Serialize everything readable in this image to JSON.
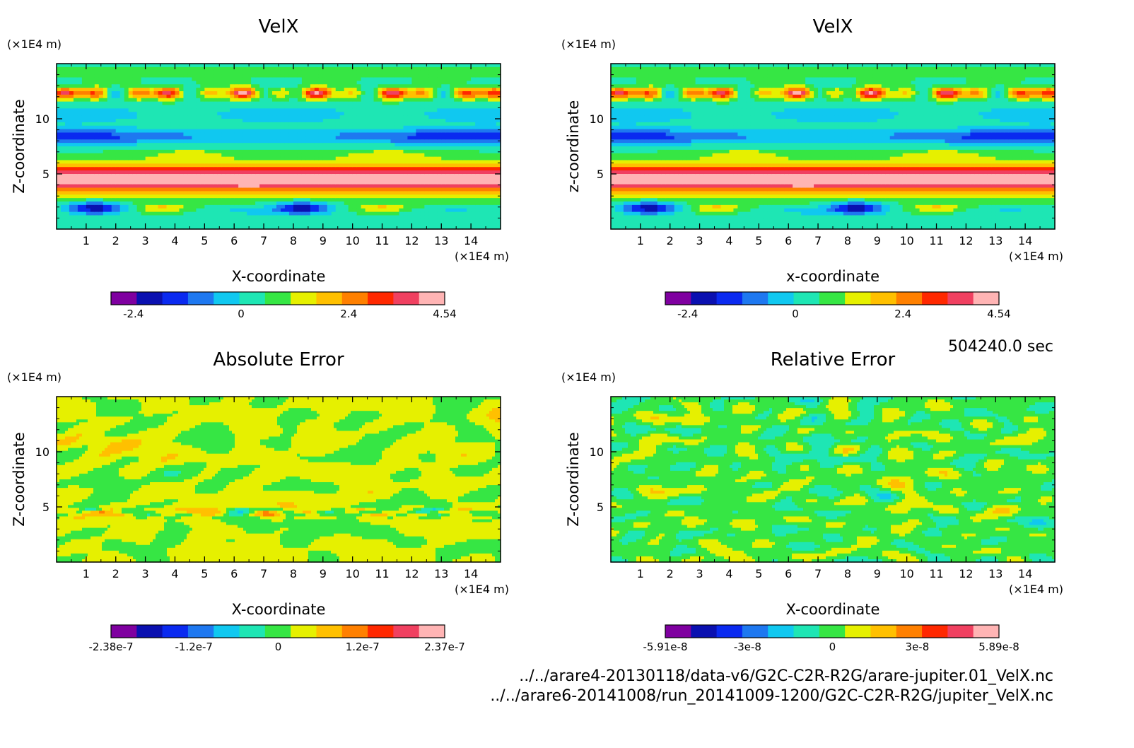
{
  "page": {
    "time_label": "504240.0 sec",
    "files": [
      "../../arare4-20130118/data-v6/G2C-C2R-R2G/arare-jupiter.01_VelX.nc",
      "../../arare6-20141008/run_20141009-1200/G2C-C2R-R2G/jupiter_VelX.nc"
    ]
  },
  "palette": [
    "#7f00a0",
    "#0a10b0",
    "#0a2af0",
    "#1e78f0",
    "#10c8f0",
    "#1ee6b4",
    "#36e644",
    "#e6f000",
    "#ffc000",
    "#ff8000",
    "#ff2800",
    "#f04060",
    "#ffb4b4"
  ],
  "chart_data": [
    {
      "type": "heatmap",
      "title": "VelX",
      "xlabel": "X-coordinate",
      "ylabel": "Z-coordinate",
      "xunit": "(×1E4 m)",
      "yunit": "(×1E4 m)",
      "xlim": [
        0,
        15
      ],
      "ylim": [
        0,
        15
      ],
      "xticks": [
        "1",
        "2",
        "3",
        "4",
        "5",
        "6",
        "7",
        "8",
        "9",
        "10",
        "11",
        "12",
        "13",
        "14"
      ],
      "yticks": [
        "5",
        "10"
      ],
      "colorbar": {
        "min": -2.9,
        "max": 4.54,
        "ticks": [
          "-2.4",
          "0",
          "2.4",
          "4.54"
        ],
        "tick_values": [
          -2.4,
          0,
          2.4,
          4.54
        ]
      }
    },
    {
      "type": "heatmap",
      "title": "VelX",
      "xlabel": "x-coordinate",
      "ylabel": "z-coordinate",
      "xunit": "(×1E4 m)",
      "yunit": "(×1E4 m)",
      "xlim": [
        0,
        15
      ],
      "ylim": [
        0,
        15
      ],
      "xticks": [
        "1",
        "2",
        "3",
        "4",
        "5",
        "6",
        "7",
        "8",
        "9",
        "10",
        "11",
        "12",
        "13",
        "14"
      ],
      "yticks": [
        "5",
        "10"
      ],
      "colorbar": {
        "min": -2.9,
        "max": 4.54,
        "ticks": [
          "-2.4",
          "0",
          "2.4",
          "4.54"
        ],
        "tick_values": [
          -2.4,
          0,
          2.4,
          4.54
        ]
      }
    },
    {
      "type": "heatmap",
      "title": "Absolute Error",
      "xlabel": "X-coordinate",
      "ylabel": "Z-coordinate",
      "xunit": "(×1E4 m)",
      "yunit": "(×1E4 m)",
      "xlim": [
        0,
        15
      ],
      "ylim": [
        0,
        15
      ],
      "xticks": [
        "1",
        "2",
        "3",
        "4",
        "5",
        "6",
        "7",
        "8",
        "9",
        "10",
        "11",
        "12",
        "13",
        "14"
      ],
      "yticks": [
        "5",
        "10"
      ],
      "colorbar": {
        "min": -2.38e-07,
        "max": 2.37e-07,
        "ticks": [
          "-2.38e-7",
          "-1.2e-7",
          "0",
          "1.2e-7",
          "2.37e-7"
        ],
        "tick_values": [
          -2.38e-07,
          -1.2e-07,
          0,
          1.2e-07,
          2.37e-07
        ]
      }
    },
    {
      "type": "heatmap",
      "title": "Relative Error",
      "xlabel": "X-coordinate",
      "ylabel": "Z-coordinate",
      "xunit": "(×1E4 m)",
      "yunit": "(×1E4 m)",
      "xlim": [
        0,
        15
      ],
      "ylim": [
        0,
        15
      ],
      "xticks": [
        "1",
        "2",
        "3",
        "4",
        "5",
        "6",
        "7",
        "8",
        "9",
        "10",
        "11",
        "12",
        "13",
        "14"
      ],
      "yticks": [
        "5",
        "10"
      ],
      "colorbar": {
        "min": -5.91e-08,
        "max": 5.89e-08,
        "ticks": [
          "-5.91e-8",
          "-3e-8",
          "0",
          "3e-8",
          "5.89e-8"
        ],
        "tick_values": [
          -5.91e-08,
          -3e-08,
          0,
          3e-08,
          5.89e-08
        ]
      }
    }
  ]
}
